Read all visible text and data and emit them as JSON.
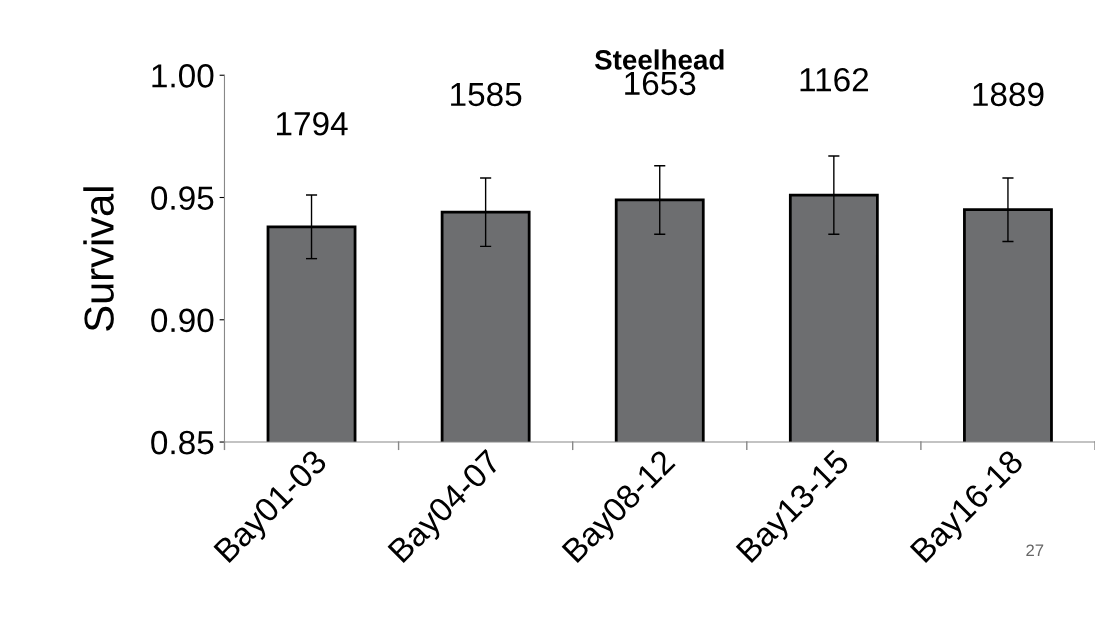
{
  "chart_data": {
    "type": "bar",
    "title": "Steelhead",
    "ylabel": "Survival",
    "categories": [
      "Bay01-03",
      "Bay04-07",
      "Bay08-12",
      "Bay13-15",
      "Bay16-18"
    ],
    "values": [
      0.938,
      0.944,
      0.949,
      0.951,
      0.945
    ],
    "errors": [
      0.013,
      0.014,
      0.014,
      0.016,
      0.013
    ],
    "color": "#6d6e70",
    "ylim": [
      0.85,
      1.0
    ],
    "yticks": [
      {
        "value": 0.85,
        "label": "0.85"
      },
      {
        "value": 0.9,
        "label": "0.90"
      },
      {
        "value": 0.95,
        "label": "0.95"
      },
      {
        "value": 1.0,
        "label": "1.00"
      }
    ],
    "grid": false,
    "legend": false,
    "annotations": [
      "1794",
      "1585",
      "1653",
      "1162",
      "1889",
      "27"
    ]
  }
}
